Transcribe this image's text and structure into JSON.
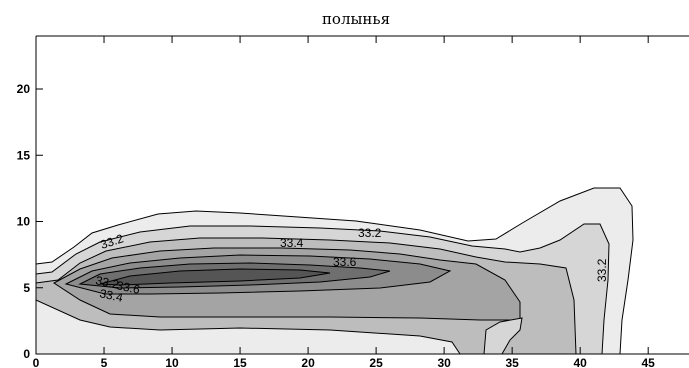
{
  "chart_data": {
    "type": "contour",
    "title": "полынья",
    "xlabel": "",
    "ylabel": "",
    "xlim": [
      0,
      48
    ],
    "ylim": [
      0,
      24
    ],
    "x_ticks": [
      0,
      5,
      10,
      15,
      20,
      25,
      30,
      35,
      40,
      45
    ],
    "y_ticks": [
      0,
      5,
      10,
      15,
      20
    ],
    "contour_levels": [
      33.1,
      33.2,
      33.3,
      33.4,
      33.5,
      33.6,
      33.7
    ],
    "contour_labels": [
      "33.2",
      "33.4",
      "33.6",
      "33.2",
      "33.6",
      "33.4",
      "33.2",
      "33.2"
    ],
    "fill_colors": [
      "#ececec",
      "#d6d6d6",
      "#bdbdbd",
      "#a4a4a4",
      "#8c8c8c",
      "#6f6f6f",
      "#555555"
    ],
    "line_color": "#000000"
  }
}
